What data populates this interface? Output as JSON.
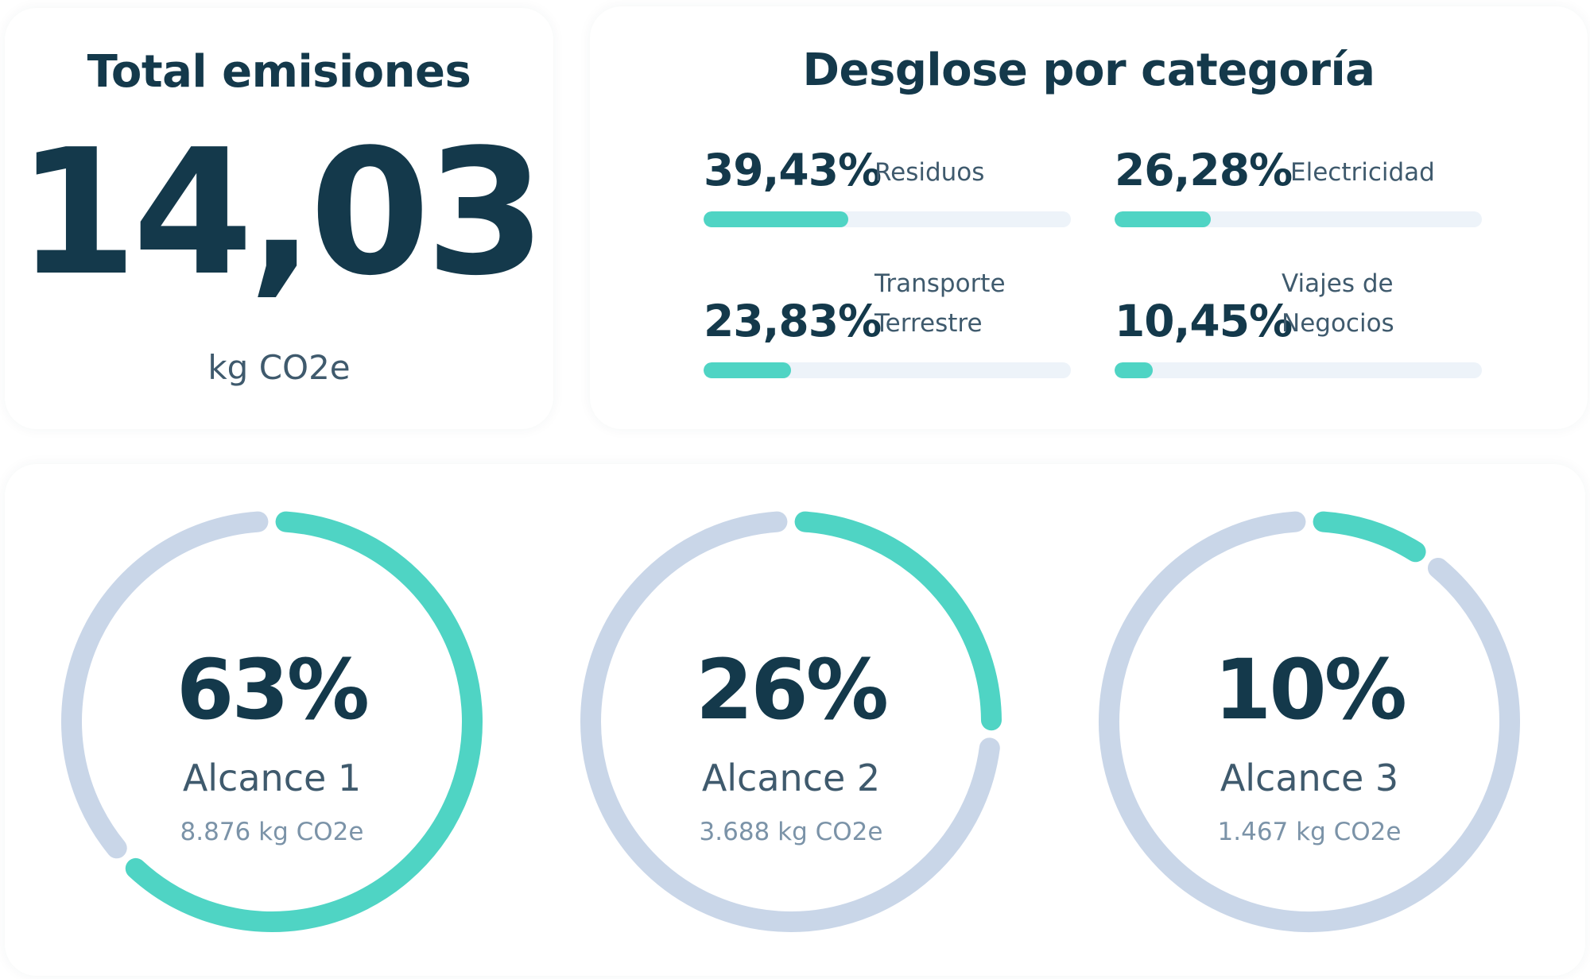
{
  "total": {
    "title": "Total emisiones",
    "value": "14,03",
    "unit": "kg CO2e"
  },
  "breakdown": {
    "title": "Desglose por categoría",
    "categories": [
      {
        "percent_label": "39,43%",
        "label_line1": "Residuos",
        "label_line2": "",
        "fraction": 0.3943
      },
      {
        "percent_label": "26,28%",
        "label_line1": "Electricidad",
        "label_line2": "",
        "fraction": 0.2628
      },
      {
        "percent_label": "23,83%",
        "label_line1": "Transporte",
        "label_line2": "Terrestre",
        "fraction": 0.2383
      },
      {
        "percent_label": "10,45%",
        "label_line1": "Viajes de",
        "label_line2": "Negocios",
        "fraction": 0.1045
      }
    ]
  },
  "scopes": [
    {
      "percent_label": "63%",
      "label": "Alcance 1",
      "amount": "8.876 kg CO2e",
      "fraction": 0.63
    },
    {
      "percent_label": "26%",
      "label": "Alcance 2",
      "amount": "3.688 kg CO2e",
      "fraction": 0.26
    },
    {
      "percent_label": "10%",
      "label": "Alcance 3",
      "amount": "1.467 kg CO2e",
      "fraction": 0.1
    }
  ],
  "colors": {
    "accent": "#4fd4c4",
    "track": "#edf3f9",
    "ring_track": "#c9d6e8",
    "text_dark": "#14394b",
    "text_mid": "#3f5a6d",
    "text_light": "#7b93a8"
  }
}
